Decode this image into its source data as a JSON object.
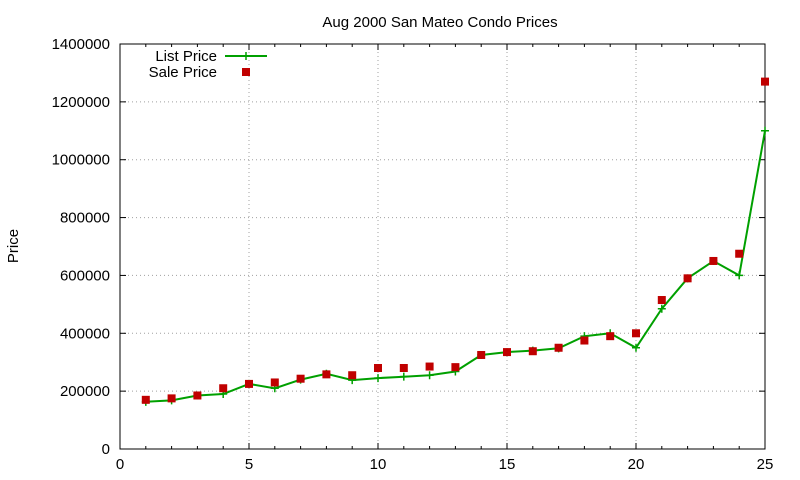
{
  "chart_data": {
    "type": "line",
    "title": "Aug 2000 San Mateo Condo Prices",
    "xlabel": "",
    "ylabel": "Price",
    "xlim": [
      0,
      25
    ],
    "ylim": [
      0,
      1400000
    ],
    "xticks": [
      0,
      5,
      10,
      15,
      20,
      25
    ],
    "yticks": [
      0,
      200000,
      400000,
      600000,
      800000,
      1000000,
      1200000,
      1400000
    ],
    "grid": true,
    "legend_position": "top-left",
    "series": [
      {
        "name": "List Price",
        "style": "linespoints",
        "marker": "plus",
        "color": "#00a000",
        "x": [
          1,
          2,
          3,
          4,
          5,
          6,
          7,
          8,
          9,
          10,
          11,
          12,
          13,
          14,
          15,
          16,
          17,
          18,
          19,
          20,
          21,
          22,
          23,
          24,
          25
        ],
        "y": [
          163000,
          168000,
          185000,
          190000,
          225000,
          210000,
          240000,
          260000,
          238000,
          245000,
          250000,
          255000,
          268000,
          325000,
          335000,
          340000,
          348000,
          390000,
          400000,
          350000,
          485000,
          590000,
          650000,
          600000,
          1100000
        ]
      },
      {
        "name": "Sale Price",
        "style": "points",
        "marker": "square",
        "color": "#c00000",
        "x": [
          1,
          2,
          3,
          4,
          5,
          6,
          7,
          8,
          9,
          10,
          11,
          12,
          13,
          14,
          15,
          16,
          17,
          18,
          19,
          20,
          21,
          22,
          23,
          24,
          25
        ],
        "y": [
          170000,
          175000,
          185000,
          210000,
          225000,
          230000,
          243000,
          258000,
          255000,
          280000,
          280000,
          285000,
          283000,
          325000,
          335000,
          338000,
          350000,
          375000,
          390000,
          400000,
          515000,
          590000,
          650000,
          675000,
          1270000
        ]
      }
    ]
  }
}
